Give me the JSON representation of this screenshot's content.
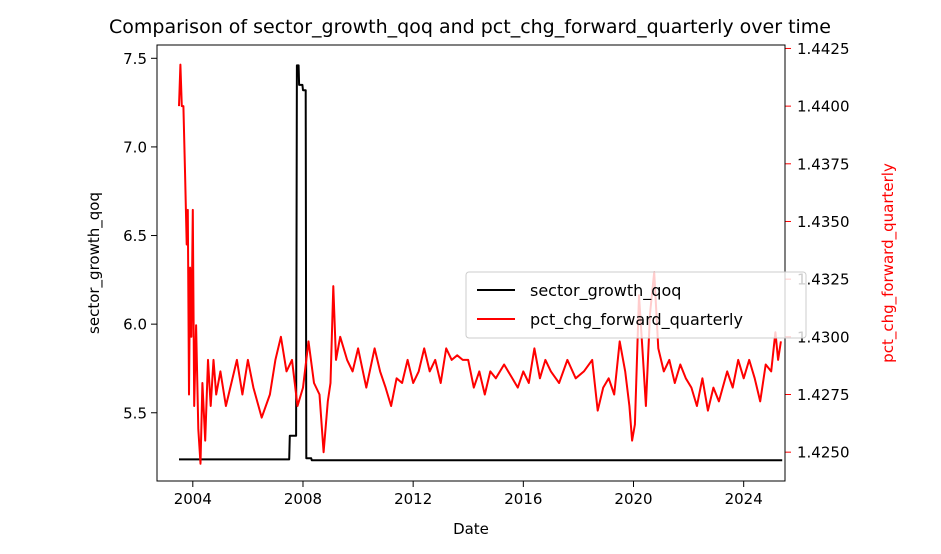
{
  "chart_data": {
    "type": "line",
    "title": "Comparison of sector_growth_qoq and pct_chg_forward_quarterly over time",
    "xlabel": "Date",
    "ylabel_left": "sector_growth_qoq",
    "ylabel_right": "pct_chg_forward_quarterly",
    "xlim": [
      2002.7,
      2025.5
    ],
    "ylim_left": [
      5.115,
      7.575
    ],
    "ylim_right": [
      1.42375,
      1.44265
    ],
    "x_ticks": [
      2004,
      2008,
      2012,
      2016,
      2020,
      2024
    ],
    "y_ticks_left": [
      5.5,
      6.0,
      6.5,
      7.0,
      7.5
    ],
    "y_ticks_right": [
      1.425,
      1.4275,
      1.43,
      1.4325,
      1.435,
      1.4375,
      1.44,
      1.4425
    ],
    "grid": false,
    "legend_position": "center-right",
    "series": [
      {
        "name": "sector_growth_qoq",
        "axis": "left",
        "color": "#000000",
        "points": [
          [
            2003.5,
            5.237
          ],
          [
            2007.5,
            5.237
          ],
          [
            2007.52,
            5.37
          ],
          [
            2007.75,
            5.37
          ],
          [
            2007.78,
            7.46
          ],
          [
            2007.84,
            7.46
          ],
          [
            2007.86,
            7.35
          ],
          [
            2007.98,
            7.35
          ],
          [
            2008.0,
            7.32
          ],
          [
            2008.1,
            7.32
          ],
          [
            2008.12,
            5.243
          ],
          [
            2008.3,
            5.243
          ],
          [
            2008.32,
            5.232
          ],
          [
            2025.4,
            5.232
          ]
        ]
      },
      {
        "name": "pct_chg_forward_quarterly",
        "axis": "right",
        "color": "#ff0000",
        "points": [
          [
            2003.5,
            1.44
          ],
          [
            2003.55,
            1.4418
          ],
          [
            2003.6,
            1.44
          ],
          [
            2003.66,
            1.44
          ],
          [
            2003.72,
            1.437
          ],
          [
            2003.78,
            1.434
          ],
          [
            2003.82,
            1.4355
          ],
          [
            2003.86,
            1.4275
          ],
          [
            2003.9,
            1.433
          ],
          [
            2003.95,
            1.43
          ],
          [
            2004.0,
            1.4355
          ],
          [
            2004.05,
            1.427
          ],
          [
            2004.12,
            1.4305
          ],
          [
            2004.2,
            1.426
          ],
          [
            2004.28,
            1.4245
          ],
          [
            2004.35,
            1.428
          ],
          [
            2004.45,
            1.4255
          ],
          [
            2004.55,
            1.429
          ],
          [
            2004.65,
            1.427
          ],
          [
            2004.75,
            1.429
          ],
          [
            2004.85,
            1.4275
          ],
          [
            2005.0,
            1.4285
          ],
          [
            2005.2,
            1.427
          ],
          [
            2005.4,
            1.428
          ],
          [
            2005.6,
            1.429
          ],
          [
            2005.8,
            1.4275
          ],
          [
            2006.0,
            1.429
          ],
          [
            2006.2,
            1.4278
          ],
          [
            2006.5,
            1.4265
          ],
          [
            2006.8,
            1.4275
          ],
          [
            2007.0,
            1.429
          ],
          [
            2007.2,
            1.43
          ],
          [
            2007.4,
            1.4285
          ],
          [
            2007.6,
            1.429
          ],
          [
            2007.8,
            1.427
          ],
          [
            2008.0,
            1.4278
          ],
          [
            2008.2,
            1.4298
          ],
          [
            2008.4,
            1.428
          ],
          [
            2008.6,
            1.4275
          ],
          [
            2008.75,
            1.425
          ],
          [
            2008.9,
            1.4272
          ],
          [
            2009.0,
            1.428
          ],
          [
            2009.1,
            1.4322
          ],
          [
            2009.2,
            1.429
          ],
          [
            2009.35,
            1.43
          ],
          [
            2009.6,
            1.429
          ],
          [
            2009.8,
            1.4285
          ],
          [
            2010.0,
            1.4295
          ],
          [
            2010.3,
            1.4278
          ],
          [
            2010.6,
            1.4295
          ],
          [
            2010.8,
            1.4285
          ],
          [
            2011.0,
            1.4278
          ],
          [
            2011.2,
            1.427
          ],
          [
            2011.4,
            1.4282
          ],
          [
            2011.6,
            1.428
          ],
          [
            2011.8,
            1.429
          ],
          [
            2012.0,
            1.428
          ],
          [
            2012.2,
            1.4285
          ],
          [
            2012.4,
            1.4295
          ],
          [
            2012.6,
            1.4285
          ],
          [
            2012.8,
            1.429
          ],
          [
            2013.0,
            1.428
          ],
          [
            2013.2,
            1.4295
          ],
          [
            2013.4,
            1.429
          ],
          [
            2013.6,
            1.4292
          ],
          [
            2013.8,
            1.429
          ],
          [
            2014.0,
            1.429
          ],
          [
            2014.2,
            1.4278
          ],
          [
            2014.4,
            1.4285
          ],
          [
            2014.6,
            1.4275
          ],
          [
            2014.8,
            1.4285
          ],
          [
            2015.0,
            1.4282
          ],
          [
            2015.3,
            1.4288
          ],
          [
            2015.6,
            1.4282
          ],
          [
            2015.8,
            1.4278
          ],
          [
            2016.0,
            1.4285
          ],
          [
            2016.2,
            1.428
          ],
          [
            2016.4,
            1.4295
          ],
          [
            2016.6,
            1.4282
          ],
          [
            2016.8,
            1.429
          ],
          [
            2017.0,
            1.4285
          ],
          [
            2017.3,
            1.428
          ],
          [
            2017.6,
            1.429
          ],
          [
            2017.9,
            1.4282
          ],
          [
            2018.2,
            1.4285
          ],
          [
            2018.5,
            1.429
          ],
          [
            2018.7,
            1.4268
          ],
          [
            2018.9,
            1.4278
          ],
          [
            2019.1,
            1.4282
          ],
          [
            2019.3,
            1.4275
          ],
          [
            2019.5,
            1.4298
          ],
          [
            2019.7,
            1.4285
          ],
          [
            2019.85,
            1.427
          ],
          [
            2019.95,
            1.4255
          ],
          [
            2020.05,
            1.4262
          ],
          [
            2020.2,
            1.4318
          ],
          [
            2020.35,
            1.429
          ],
          [
            2020.45,
            1.427
          ],
          [
            2020.6,
            1.431
          ],
          [
            2020.75,
            1.4328
          ],
          [
            2020.9,
            1.4295
          ],
          [
            2021.1,
            1.4285
          ],
          [
            2021.3,
            1.429
          ],
          [
            2021.5,
            1.428
          ],
          [
            2021.7,
            1.4288
          ],
          [
            2021.9,
            1.4282
          ],
          [
            2022.1,
            1.4278
          ],
          [
            2022.3,
            1.427
          ],
          [
            2022.5,
            1.4282
          ],
          [
            2022.7,
            1.4268
          ],
          [
            2022.9,
            1.4278
          ],
          [
            2023.1,
            1.4272
          ],
          [
            2023.4,
            1.4285
          ],
          [
            2023.6,
            1.4278
          ],
          [
            2023.8,
            1.429
          ],
          [
            2024.0,
            1.4282
          ],
          [
            2024.2,
            1.429
          ],
          [
            2024.4,
            1.4282
          ],
          [
            2024.6,
            1.4272
          ],
          [
            2024.8,
            1.4288
          ],
          [
            2025.0,
            1.4285
          ],
          [
            2025.15,
            1.4302
          ],
          [
            2025.25,
            1.429
          ],
          [
            2025.35,
            1.4298
          ]
        ]
      }
    ]
  }
}
